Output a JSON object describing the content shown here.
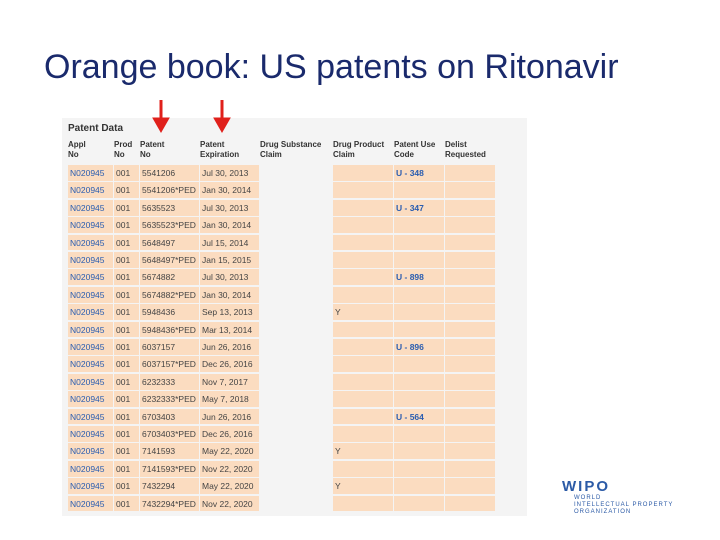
{
  "title": "Orange book: US patents on Ritonavir",
  "table": {
    "title": "Patent Data",
    "headers": [
      [
        "Appl",
        "No"
      ],
      [
        "Prod",
        "No"
      ],
      [
        "Patent",
        "No"
      ],
      [
        "Patent",
        "Expiration"
      ],
      [
        "Drug Substance",
        "Claim"
      ],
      [
        "Drug Product",
        "Claim"
      ],
      [
        "Patent Use",
        "Code"
      ],
      [
        "Delist",
        "Requested"
      ]
    ],
    "rows": [
      [
        "N020945",
        "001",
        "5541206",
        "Jul 30, 2013",
        null,
        null,
        "U - 348",
        null
      ],
      [
        "N020945",
        "001",
        "5541206*PED",
        "Jan 30, 2014",
        null,
        null,
        null,
        null
      ],
      [
        "N020945",
        "001",
        "5635523",
        "Jul 30, 2013",
        null,
        null,
        "U - 347",
        null
      ],
      [
        "N020945",
        "001",
        "5635523*PED",
        "Jan 30, 2014",
        null,
        null,
        null,
        null
      ],
      [
        "N020945",
        "001",
        "5648497",
        "Jul 15, 2014",
        null,
        null,
        null,
        null
      ],
      [
        "N020945",
        "001",
        "5648497*PED",
        "Jan 15, 2015",
        null,
        null,
        null,
        null
      ],
      [
        "N020945",
        "001",
        "5674882",
        "Jul 30, 2013",
        null,
        null,
        "U - 898",
        null
      ],
      [
        "N020945",
        "001",
        "5674882*PED",
        "Jan 30, 2014",
        null,
        null,
        null,
        null
      ],
      [
        "N020945",
        "001",
        "5948436",
        "Sep 13, 2013",
        null,
        "Y",
        null,
        null
      ],
      [
        "N020945",
        "001",
        "5948436*PED",
        "Mar 13, 2014",
        null,
        null,
        null,
        null
      ],
      [
        "N020945",
        "001",
        "6037157",
        "Jun 26, 2016",
        null,
        null,
        "U - 896",
        null
      ],
      [
        "N020945",
        "001",
        "6037157*PED",
        "Dec 26, 2016",
        null,
        null,
        null,
        null
      ],
      [
        "N020945",
        "001",
        "6232333",
        "Nov 7, 2017",
        null,
        null,
        null,
        null
      ],
      [
        "N020945",
        "001",
        "6232333*PED",
        "May 7, 2018",
        null,
        null,
        null,
        null
      ],
      [
        "N020945",
        "001",
        "6703403",
        "Jun 26, 2016",
        null,
        null,
        "U - 564",
        null
      ],
      [
        "N020945",
        "001",
        "6703403*PED",
        "Dec 26, 2016",
        null,
        null,
        null,
        null
      ],
      [
        "N020945",
        "001",
        "7141593",
        "May 22, 2020",
        null,
        "Y",
        null,
        null
      ],
      [
        "N020945",
        "001",
        "7141593*PED",
        "Nov 22, 2020",
        null,
        null,
        null,
        null
      ],
      [
        "N020945",
        "001",
        "7432294",
        "May 22, 2020",
        null,
        "Y",
        null,
        null
      ],
      [
        "N020945",
        "001",
        "7432294*PED",
        "Nov 22, 2020",
        null,
        null,
        null,
        null
      ]
    ]
  },
  "logo": {
    "name": "WIPO",
    "lines": [
      "WORLD",
      "INTELLECTUAL PROPERTY",
      "ORGANIZATION"
    ]
  }
}
